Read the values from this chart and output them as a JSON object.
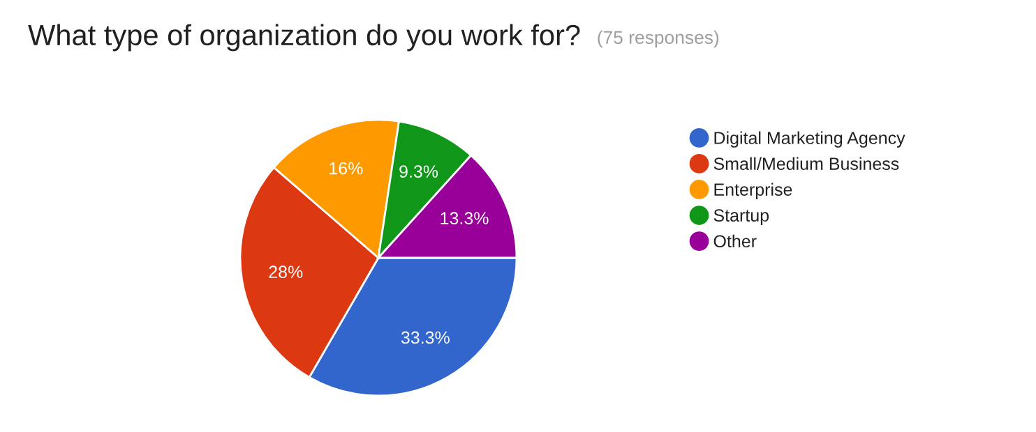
{
  "chart_data": {
    "type": "pie",
    "title": "What type of organization do you work for?",
    "subtitle": "(75 responses)",
    "categories": [
      "Digital Marketing Agency",
      "Small/Medium Business",
      "Enterprise",
      "Startup",
      "Other"
    ],
    "values": [
      33.3,
      28,
      16,
      9.3,
      13.3
    ],
    "value_labels": [
      "33.3%",
      "28%",
      "16%",
      "9.3%",
      "13.3%"
    ],
    "colors": [
      "#3366cc",
      "#dc3912",
      "#ff9900",
      "#109618",
      "#990099"
    ],
    "legend": "right"
  }
}
